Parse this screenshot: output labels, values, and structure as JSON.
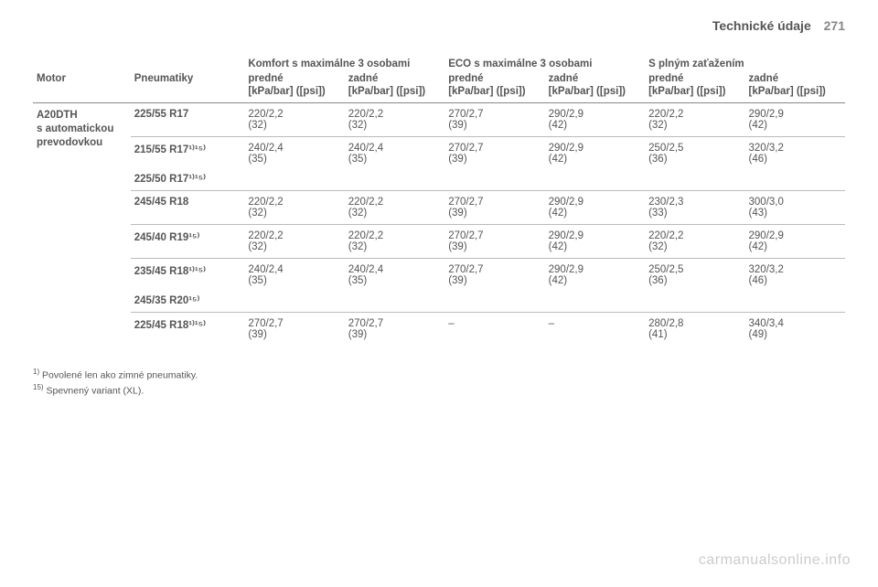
{
  "header": {
    "title": "Technické údaje",
    "page": "271"
  },
  "columns": {
    "motor": "Motor",
    "pneu": "Pneumatiky",
    "groups": [
      {
        "title": "Komfort s maximálne 3 osobami",
        "front": "predné",
        "rear": "zadné"
      },
      {
        "title": "ECO s maximálne 3 osobami",
        "front": "predné",
        "rear": "zadné"
      },
      {
        "title": "S plným zaťažením",
        "front": "predné",
        "rear": "zadné"
      }
    ],
    "unit": "[kPa/bar] ([psi])"
  },
  "motor": {
    "name": "A20DTH",
    "sub1": "s automatickou",
    "sub2": "prevodovkou"
  },
  "rows": [
    {
      "tyre": "225/55 R17",
      "tyre2": "",
      "vals": [
        "220/2,2 (32)",
        "220/2,2 (32)",
        "270/2,7 (39)",
        "290/2,9 (42)",
        "220/2,2 (32)",
        "290/2,9 (42)"
      ]
    },
    {
      "tyre": "215/55 R17¹⁾¹⁵⁾",
      "tyre2": "225/50 R17¹⁾¹⁵⁾",
      "vals": [
        "240/2,4 (35)",
        "240/2,4 (35)",
        "270/2,7 (39)",
        "290/2,9 (42)",
        "250/2,5 (36)",
        "320/3,2 (46)"
      ]
    },
    {
      "tyre": "245/45 R18",
      "tyre2": "",
      "vals": [
        "220/2,2 (32)",
        "220/2,2 (32)",
        "270/2,7 (39)",
        "290/2,9 (42)",
        "230/2,3 (33)",
        "300/3,0 (43)"
      ]
    },
    {
      "tyre": "245/40 R19¹⁵⁾",
      "tyre2": "",
      "vals": [
        "220/2,2 (32)",
        "220/2,2 (32)",
        "270/2,7 (39)",
        "290/2,9 (42)",
        "220/2,2 (32)",
        "290/2,9 (42)"
      ]
    },
    {
      "tyre": "235/45 R18¹⁾¹⁵⁾",
      "tyre2": "245/35 R20¹⁵⁾",
      "vals": [
        "240/2,4 (35)",
        "240/2,4 (35)",
        "270/2,7 (39)",
        "290/2,9 (42)",
        "250/2,5 (36)",
        "320/3,2 (46)"
      ]
    },
    {
      "tyre": "225/45 R18¹⁾¹⁵⁾",
      "tyre2": "",
      "vals": [
        "270/2,7 (39)",
        "270/2,7 (39)",
        "–",
        "–",
        "280/2,8 (41)",
        "340/3,4 (49)"
      ]
    }
  ],
  "footnotes": [
    {
      "mark": "1)",
      "text": "Povolené len ako zimné pneumatiky."
    },
    {
      "mark": "15)",
      "text": "Spevnený variant (XL)."
    }
  ],
  "watermark": "carmanualsonline.info",
  "colors": {
    "text": "#555555",
    "border": "#bbbbbb",
    "watermark": "#cccccc",
    "bg": "#ffffff"
  }
}
